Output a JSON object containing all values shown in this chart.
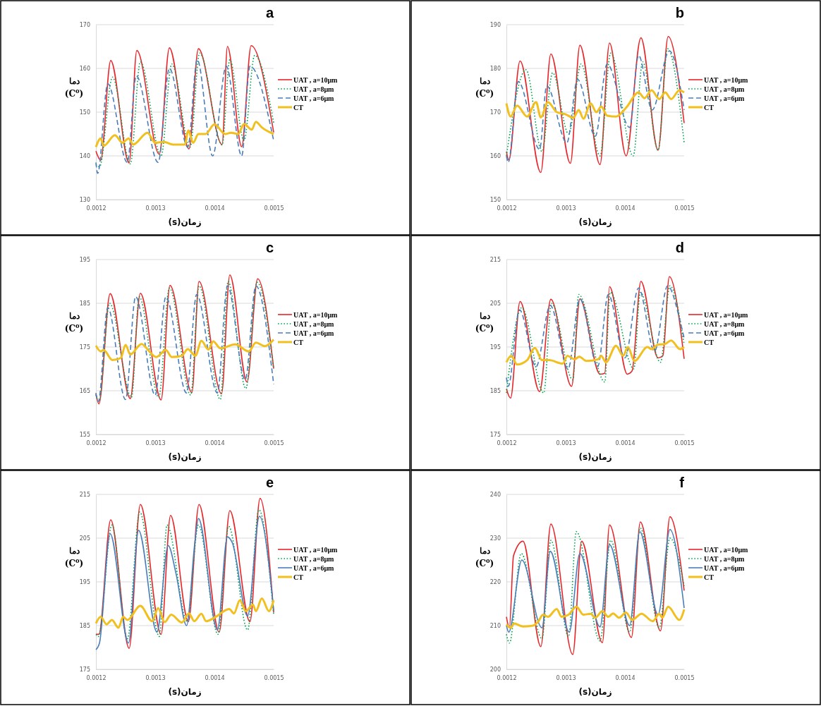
{
  "chart_data": [
    {
      "type": "line",
      "title": "a",
      "xlabel": "زمان(s)",
      "ylabel": "دما\n(C$^{o}$)",
      "xlim": [
        0.0012,
        0.0015
      ],
      "xticks": [
        0.0012,
        0.0013,
        0.0014,
        0.0015
      ],
      "ylim": [
        130,
        170
      ],
      "yticks": [
        130,
        140,
        150,
        160,
        170
      ],
      "grid": "y",
      "legend": "right",
      "series": [
        {
          "name": "UAT , a=10μm",
          "color": "#e8262a",
          "line_style": "solid",
          "x": [
            0.0012,
            0.001208,
            0.001225,
            0.001256,
            0.001269,
            0.001307,
            0.001324,
            0.001357,
            0.001373,
            0.001413,
            0.001422,
            0.001446,
            0.001462,
            0.0015
          ],
          "values": [
            141.1,
            139,
            161.8,
            138.4,
            164.1,
            140.4,
            164.7,
            141.6,
            164.5,
            142.6,
            165,
            142.1,
            165.2,
            145.4
          ]
        },
        {
          "name": "UAT , a=8μm",
          "color": "#00a550",
          "line_style": "dotted",
          "x": [
            0.0012,
            0.001206,
            0.001228,
            0.001258,
            0.001275,
            0.00131,
            0.001328,
            0.001359,
            0.001375,
            0.001413,
            0.001426,
            0.00145,
            0.001468,
            0.0015
          ],
          "values": [
            138,
            137.5,
            158,
            138.2,
            161.5,
            140,
            161,
            142,
            163.5,
            142.5,
            162,
            143.5,
            163,
            147.6
          ]
        },
        {
          "name": "UAT , a=6μm",
          "color": "#4a7ebb",
          "line_style": "dashed",
          "x": [
            0.0012,
            0.001203,
            0.00122,
            0.001253,
            0.001268,
            0.001305,
            0.001324,
            0.001355,
            0.001371,
            0.001397,
            0.00142,
            0.001446,
            0.00146,
            0.0015
          ],
          "values": [
            138.5,
            136,
            156.5,
            138.5,
            158.3,
            138.5,
            160,
            142,
            162,
            140,
            160.5,
            140,
            160.5,
            143.5
          ]
        },
        {
          "name": "CT",
          "color": "#f2c01e",
          "line_style": "solid",
          "x": [
            0.0012,
            0.001208,
            0.001213,
            0.001232,
            0.001245,
            0.001255,
            0.001263,
            0.001287,
            0.0013,
            0.001315,
            0.00133,
            0.00135,
            0.001356,
            0.001364,
            0.001373,
            0.001385,
            0.0014,
            0.001418,
            0.001428,
            0.00144,
            0.00145,
            0.001463,
            0.00147,
            0.00148,
            0.0015
          ],
          "values": [
            142,
            144,
            142.3,
            144.7,
            143,
            144,
            142.6,
            145.3,
            143,
            143.2,
            142.6,
            142.6,
            145.8,
            143,
            145,
            145,
            147.2,
            145,
            145.3,
            145,
            147.3,
            146,
            147.8,
            146.5,
            145
          ]
        }
      ]
    },
    {
      "type": "line",
      "title": "b",
      "xlabel": "زمان(s)",
      "ylabel": "دما\n(C$^{o}$)",
      "xlim": [
        0.0012,
        0.0015
      ],
      "xticks": [
        0.0012,
        0.0013,
        0.0014,
        0.0015
      ],
      "ylim": [
        150,
        190
      ],
      "yticks": [
        150,
        160,
        170,
        180,
        190
      ],
      "grid": "y",
      "legend": "right",
      "series": [
        {
          "name": "UAT , a=10μm",
          "color": "#e8262a",
          "line_style": "solid",
          "x": [
            0.0012,
            0.001204,
            0.001223,
            0.001258,
            0.001275,
            0.001308,
            0.001324,
            0.001358,
            0.001374,
            0.001402,
            0.001427,
            0.001456,
            0.001473,
            0.0015
          ],
          "values": [
            161,
            159,
            181.7,
            156.2,
            183.3,
            158.3,
            185.3,
            158,
            185.8,
            160,
            187,
            161.3,
            187.3,
            167.5
          ]
        },
        {
          "name": "UAT , a=8μm",
          "color": "#00a550",
          "line_style": "dotted",
          "x": [
            0.0012,
            0.001233,
            0.00126,
            0.001278,
            0.001305,
            0.001326,
            0.001358,
            0.001376,
            0.001414,
            0.00143,
            0.001456,
            0.001472,
            0.0015
          ],
          "values": [
            160,
            179.7,
            161,
            179,
            165,
            181,
            160,
            183.5,
            160,
            181.5,
            161.3,
            184.5,
            163
          ]
        },
        {
          "name": "UAT , a=6μm",
          "color": "#4a7ebb",
          "line_style": "dashed",
          "x": [
            0.0012,
            0.001203,
            0.00122,
            0.001256,
            0.001268,
            0.001302,
            0.00132,
            0.00135,
            0.00137,
            0.001408,
            0.001423,
            0.001446,
            0.001475,
            0.0015
          ],
          "values": [
            160,
            158.5,
            177,
            161.5,
            176,
            163,
            177.5,
            164.5,
            181,
            166.5,
            183,
            170.5,
            184,
            170.5
          ]
        },
        {
          "name": "CT",
          "color": "#f2c01e",
          "line_style": "solid",
          "x": [
            0.0012,
            0.001207,
            0.001218,
            0.001235,
            0.00125,
            0.001258,
            0.00127,
            0.001285,
            0.0013,
            0.001313,
            0.001322,
            0.00133,
            0.001342,
            0.001352,
            0.00136,
            0.00137,
            0.001385,
            0.001402,
            0.001423,
            0.001433,
            0.001445,
            0.001458,
            0.001468,
            0.001478,
            0.001492,
            0.0015
          ],
          "values": [
            172,
            169,
            171.5,
            169,
            172.3,
            168.8,
            172.3,
            170,
            169.5,
            168.7,
            170.5,
            168.5,
            172,
            170,
            171.3,
            169.2,
            169,
            171,
            174.5,
            173.2,
            175,
            173,
            174.5,
            173,
            175,
            174.5
          ]
        }
      ]
    },
    {
      "type": "line",
      "title": "c",
      "xlabel": "زمان(s)",
      "ylabel": "دما\n(C$^{o}$)",
      "xlim": [
        0.0012,
        0.0015
      ],
      "xticks": [
        0.0012,
        0.0013,
        0.0014,
        0.0015
      ],
      "ylim": [
        155,
        195
      ],
      "yticks": [
        155,
        165,
        175,
        185,
        195
      ],
      "grid": "y",
      "legend": "right",
      "series": [
        {
          "name": "UAT , a=10μm",
          "color": "#e8262a",
          "line_style": "solid",
          "x": [
            0.0012,
            0.001205,
            0.001224,
            0.001258,
            0.001275,
            0.00131,
            0.001325,
            0.001362,
            0.001374,
            0.001412,
            0.001426,
            0.001455,
            0.001473,
            0.0015
          ],
          "values": [
            164.3,
            162,
            187.2,
            163.2,
            187.3,
            162.9,
            189.1,
            164.6,
            190,
            164.3,
            191.5,
            167,
            190.6,
            170.1
          ]
        },
        {
          "name": "UAT , a=8μm",
          "color": "#00a550",
          "line_style": "dotted",
          "x": [
            0.0012,
            0.001205,
            0.001223,
            0.00126,
            0.001273,
            0.001306,
            0.001324,
            0.00136,
            0.001374,
            0.00141,
            0.001423,
            0.001453,
            0.001472,
            0.0015
          ],
          "values": [
            164,
            162.5,
            185,
            163.5,
            186.5,
            163.5,
            188.5,
            164,
            189,
            163,
            190,
            165.5,
            189.8,
            170
          ]
        },
        {
          "name": "UAT , a=6μm",
          "color": "#4a7ebb",
          "line_style": "dashed",
          "x": [
            0.0012,
            0.001204,
            0.00122,
            0.00125,
            0.001267,
            0.0013,
            0.001318,
            0.001353,
            0.00137,
            0.001405,
            0.001422,
            0.001452,
            0.00147,
            0.0015
          ],
          "values": [
            164.5,
            162.5,
            184,
            163,
            186.5,
            164,
            186.5,
            164.5,
            187,
            164.5,
            189,
            167.5,
            189,
            166.5
          ]
        },
        {
          "name": "CT",
          "color": "#f2c01e",
          "line_style": "solid",
          "x": [
            0.0012,
            0.001208,
            0.001213,
            0.001228,
            0.001242,
            0.00125,
            0.001258,
            0.001277,
            0.00129,
            0.001302,
            0.001318,
            0.001328,
            0.001345,
            0.001355,
            0.001368,
            0.001378,
            0.00139,
            0.001398,
            0.00141,
            0.001435,
            0.001458,
            0.00147,
            0.001485,
            0.0015
          ],
          "values": [
            175.3,
            174,
            174.3,
            172,
            172.5,
            175.5,
            173.3,
            175.7,
            174,
            172.7,
            174.3,
            172.7,
            173,
            174.5,
            173,
            176.4,
            174.4,
            176.3,
            174.7,
            175.6,
            174,
            176,
            175.2,
            176.7
          ]
        }
      ]
    },
    {
      "type": "line",
      "title": "d",
      "xlabel": "زمان(s)",
      "ylabel": "دما\n(C$^{o}$)",
      "xlim": [
        0.0012,
        0.0015
      ],
      "xticks": [
        0.0012,
        0.0013,
        0.0014,
        0.0015
      ],
      "ylim": [
        175,
        215
      ],
      "yticks": [
        175,
        185,
        195,
        205,
        215
      ],
      "grid": "y",
      "legend": "right",
      "series": [
        {
          "name": "UAT , a=10μm",
          "color": "#e8262a",
          "line_style": "solid",
          "x": [
            0.0012,
            0.001207,
            0.001223,
            0.001256,
            0.001275,
            0.00131,
            0.001324,
            0.001358,
            0.001366,
            0.001374,
            0.001404,
            0.001412,
            0.001427,
            0.001456,
            0.001464,
            0.001475,
            0.0015
          ],
          "values": [
            185.4,
            183.3,
            205.4,
            184.8,
            205.9,
            186,
            206,
            188.8,
            189,
            208.8,
            188.8,
            189.5,
            210,
            192.5,
            193,
            211.1,
            192.3
          ]
        },
        {
          "name": "UAT , a=8μm",
          "color": "#00a550",
          "line_style": "dotted",
          "x": [
            0.0012,
            0.001226,
            0.001263,
            0.001276,
            0.001312,
            0.001322,
            0.001366,
            0.001375,
            0.001415,
            0.001426,
            0.00146,
            0.001476,
            0.0015
          ],
          "values": [
            184.5,
            204,
            184.5,
            205,
            187.5,
            207,
            187,
            207.5,
            190,
            207.5,
            191.5,
            209,
            195.5
          ]
        },
        {
          "name": "UAT , a=6μm",
          "color": "#4a7ebb",
          "line_style": "dashed",
          "x": [
            0.0012,
            0.001203,
            0.001222,
            0.00125,
            0.001274,
            0.001304,
            0.001324,
            0.001354,
            0.001372,
            0.0014,
            0.001423,
            0.00145,
            0.001472,
            0.001493,
            0.0015
          ],
          "values": [
            188,
            186,
            203.5,
            190.5,
            204.5,
            190,
            206,
            190.5,
            207,
            192.5,
            208.5,
            194,
            209,
            201,
            197
          ]
        },
        {
          "name": "CT",
          "color": "#f2c01e",
          "line_style": "solid",
          "x": [
            0.0012,
            0.001208,
            0.001218,
            0.001235,
            0.001248,
            0.00126,
            0.001272,
            0.001295,
            0.001303,
            0.001315,
            0.001323,
            0.001335,
            0.001355,
            0.00136,
            0.001368,
            0.001385,
            0.001397,
            0.001405,
            0.001416,
            0.001438,
            0.001445,
            0.001455,
            0.001468,
            0.001478,
            0.001493,
            0.0015
          ],
          "values": [
            191.5,
            193,
            191,
            192,
            194.8,
            192,
            192,
            191.2,
            193,
            192.2,
            192.8,
            191.8,
            192.2,
            193,
            191.5,
            195.3,
            193,
            195,
            191.8,
            195,
            194.5,
            195.5,
            195.7,
            196.5,
            194.5,
            195
          ]
        }
      ]
    },
    {
      "type": "line",
      "title": "e",
      "xlabel": "زمان(s)",
      "ylabel": "دما\n(C$^{o}$)",
      "xlim": [
        0.0012,
        0.0015
      ],
      "xticks": [
        0.0012,
        0.0013,
        0.0014,
        0.0015
      ],
      "ylim": [
        175,
        215
      ],
      "yticks": [
        175,
        185,
        195,
        205,
        215
      ],
      "grid": "y",
      "legend": "right",
      "series": [
        {
          "name": "UAT , a=10μm",
          "color": "#e8262a",
          "line_style": "solid",
          "x": [
            0.0012,
            0.001205,
            0.001225,
            0.001256,
            0.001275,
            0.00131,
            0.001326,
            0.001356,
            0.001374,
            0.001408,
            0.001426,
            0.00146,
            0.001477,
            0.0015
          ],
          "values": [
            183,
            183,
            209.2,
            179.8,
            212.7,
            183,
            210.2,
            185.9,
            212.7,
            183.5,
            211.3,
            185.9,
            214.1,
            188
          ]
        },
        {
          "name": "UAT , a=8μm",
          "color": "#00a550",
          "line_style": "dotted",
          "x": [
            0.0012,
            0.001204,
            0.001227,
            0.001253,
            0.001274,
            0.001307,
            0.00132,
            0.001354,
            0.001373,
            0.001406,
            0.001424,
            0.001456,
            0.001475,
            0.0015
          ],
          "values": [
            183,
            182.5,
            208,
            182,
            211,
            182.5,
            208,
            186,
            208,
            183,
            207.7,
            184,
            211.5,
            187.5
          ]
        },
        {
          "name": "UAT , a=6μm",
          "color": "#4a7ebb",
          "line_style": "solid",
          "x": [
            0.0012,
            0.001206,
            0.001224,
            0.001255,
            0.001272,
            0.001303,
            0.001322,
            0.001335,
            0.001353,
            0.001367,
            0.001373,
            0.001405,
            0.001422,
            0.00143,
            0.001456,
            0.001476,
            0.0015
          ],
          "values": [
            179.5,
            181,
            206,
            181,
            206.8,
            183.5,
            203.3,
            197,
            185,
            204,
            209.5,
            184,
            205.3,
            204,
            187.2,
            210,
            188.5
          ]
        },
        {
          "name": "CT",
          "color": "#f2c01e",
          "line_style": "solid",
          "x": [
            0.0012,
            0.001208,
            0.001218,
            0.001227,
            0.001238,
            0.001246,
            0.001253,
            0.001275,
            0.001295,
            0.001305,
            0.001316,
            0.001327,
            0.001345,
            0.001357,
            0.001366,
            0.001378,
            0.001386,
            0.0014,
            0.001425,
            0.001433,
            0.001443,
            0.001453,
            0.001465,
            0.00147,
            0.00148,
            0.001492,
            0.0015
          ],
          "values": [
            185.5,
            187,
            185.3,
            186.3,
            184.5,
            187,
            186.3,
            189.5,
            186,
            189,
            185.8,
            187.5,
            185.7,
            187.8,
            186,
            187.7,
            186,
            186.8,
            188.8,
            187.8,
            190.8,
            188.3,
            189.8,
            188.3,
            191.2,
            188.3,
            190.8
          ]
        }
      ]
    },
    {
      "type": "line",
      "title": "f",
      "xlabel": "زمان(s)",
      "ylabel": "دما\n(C$^{o}$)",
      "xlim": [
        0.0012,
        0.0015
      ],
      "xticks": [
        0.0012,
        0.0013,
        0.0014,
        0.0015
      ],
      "ylim": [
        200,
        240
      ],
      "yticks": [
        200,
        210,
        220,
        230,
        240
      ],
      "grid": "y",
      "legend": "right",
      "series": [
        {
          "name": "UAT , a=10μm",
          "color": "#e8262a",
          "line_style": "solid",
          "x": [
            0.0012,
            0.001205,
            0.001212,
            0.001228,
            0.001258,
            0.001275,
            0.001312,
            0.001327,
            0.001362,
            0.001374,
            0.001411,
            0.001426,
            0.00146,
            0.001476,
            0.0015
          ],
          "values": [
            212,
            209.5,
            226,
            229.3,
            205.2,
            233.2,
            203.4,
            229.3,
            206.1,
            233,
            207.3,
            233.7,
            208.8,
            234.9,
            218
          ]
        },
        {
          "name": "UAT , a=8μm",
          "color": "#00a550",
          "line_style": "dotted",
          "x": [
            0.0012,
            0.001205,
            0.001225,
            0.00126,
            0.001275,
            0.001305,
            0.001318,
            0.001358,
            0.001376,
            0.001408,
            0.001426,
            0.001458,
            0.001476,
            0.0015
          ],
          "values": [
            208,
            206,
            226.5,
            207,
            229.5,
            207.5,
            231.5,
            206.5,
            229.5,
            208.5,
            232.3,
            209.5,
            230,
            219
          ]
        },
        {
          "name": "UAT , a=6μm",
          "color": "#4a7ebb",
          "line_style": "solid",
          "x": [
            0.0012,
            0.001204,
            0.001226,
            0.00126,
            0.001274,
            0.001306,
            0.001324,
            0.001358,
            0.001374,
            0.001408,
            0.001425,
            0.001456,
            0.001476,
            0.0015
          ],
          "values": [
            210,
            208.5,
            225,
            209.5,
            227,
            208.5,
            226.5,
            209.7,
            228.5,
            210,
            231.5,
            212.5,
            232,
            214
          ]
        },
        {
          "name": "CT",
          "color": "#f2c01e",
          "line_style": "solid",
          "x": [
            0.0012,
            0.001207,
            0.001213,
            0.001228,
            0.001245,
            0.001253,
            0.001262,
            0.00127,
            0.001285,
            0.001293,
            0.001305,
            0.001318,
            0.00133,
            0.001342,
            0.00135,
            0.001362,
            0.001372,
            0.00138,
            0.00139,
            0.001402,
            0.001412,
            0.001428,
            0.001447,
            0.001458,
            0.001463,
            0.001473,
            0.001492,
            0.0015
          ],
          "values": [
            210.3,
            209.5,
            210.5,
            209.8,
            210,
            210.8,
            212.5,
            212,
            213.8,
            212,
            212.5,
            214.3,
            212.5,
            212.7,
            211.8,
            213.3,
            212,
            212.8,
            211.8,
            213,
            211.3,
            212.7,
            211,
            212.7,
            211.8,
            214.3,
            211.3,
            213.7
          ]
        }
      ]
    }
  ]
}
